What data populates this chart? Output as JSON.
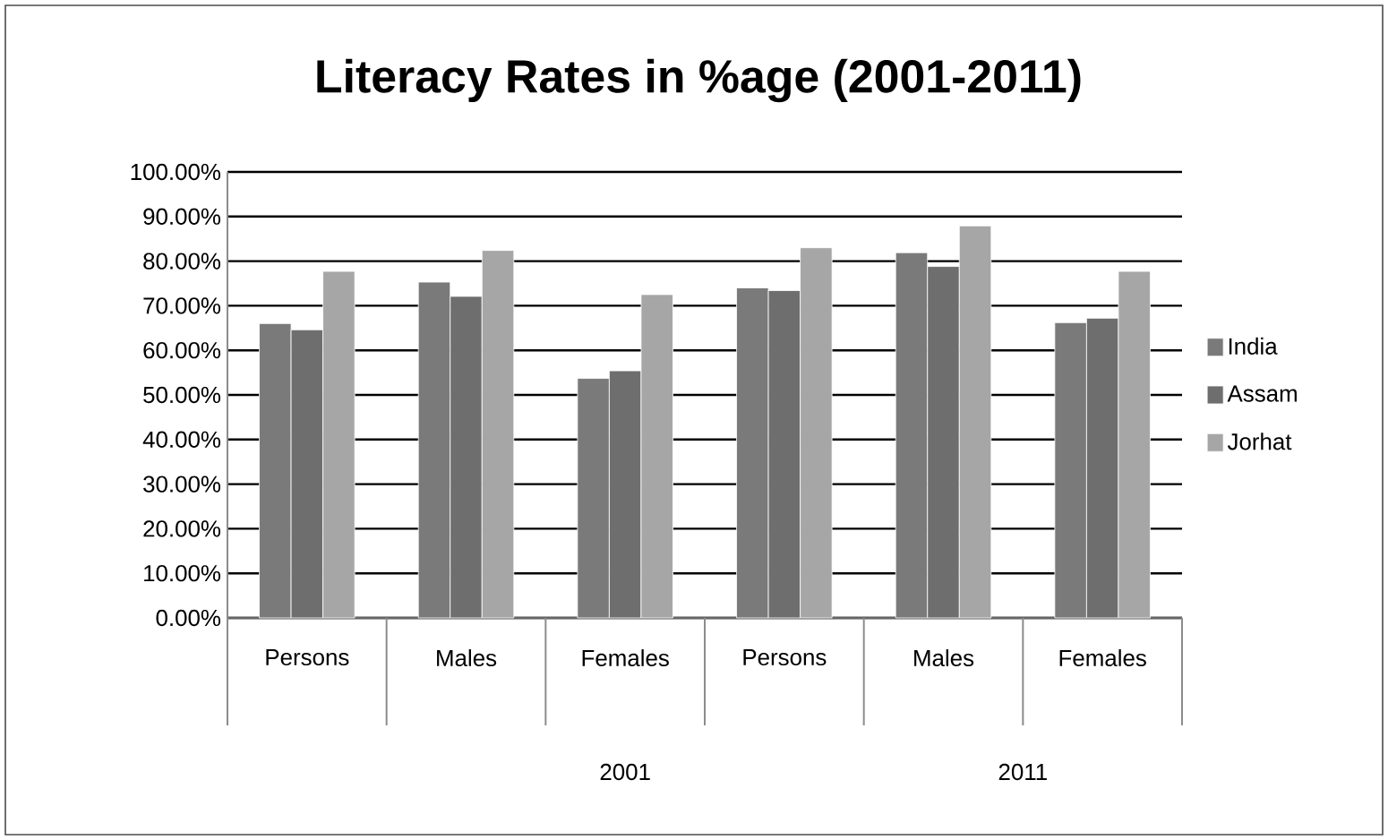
{
  "chart_data": {
    "type": "bar",
    "title": "Literacy Rates in %age (2001-2011)",
    "categories": [
      "Persons",
      "Males",
      "Females",
      "Persons",
      "Males",
      "Females"
    ],
    "series": [
      {
        "name": "India",
        "color": "#7a7a7a",
        "values": [
          66.0,
          75.3,
          53.7,
          74.0,
          81.9,
          66.2
        ]
      },
      {
        "name": "Assam",
        "color": "#6e6e6e",
        "values": [
          64.6,
          72.1,
          55.4,
          73.4,
          78.8,
          67.2
        ]
      },
      {
        "name": "Jorhat",
        "color": "#a6a6a6",
        "values": [
          77.7,
          82.4,
          72.5,
          83.0,
          87.9,
          77.7
        ]
      }
    ],
    "ylim": [
      0,
      100
    ],
    "yticks": [
      {
        "value": 0,
        "label": "0.00%"
      },
      {
        "value": 10,
        "label": "10.00%"
      },
      {
        "value": 20,
        "label": "20.00%"
      },
      {
        "value": 30,
        "label": "30.00%"
      },
      {
        "value": 40,
        "label": "40.00%"
      },
      {
        "value": 50,
        "label": "50.00%"
      },
      {
        "value": 60,
        "label": "60.00%"
      },
      {
        "value": 70,
        "label": "70.00%"
      },
      {
        "value": 80,
        "label": "80.00%"
      },
      {
        "value": 90,
        "label": "90.00%"
      },
      {
        "value": 100,
        "label": "100.00%"
      }
    ],
    "annotations": [
      "2001",
      "2011"
    ],
    "grid": "y",
    "legend": "right"
  }
}
